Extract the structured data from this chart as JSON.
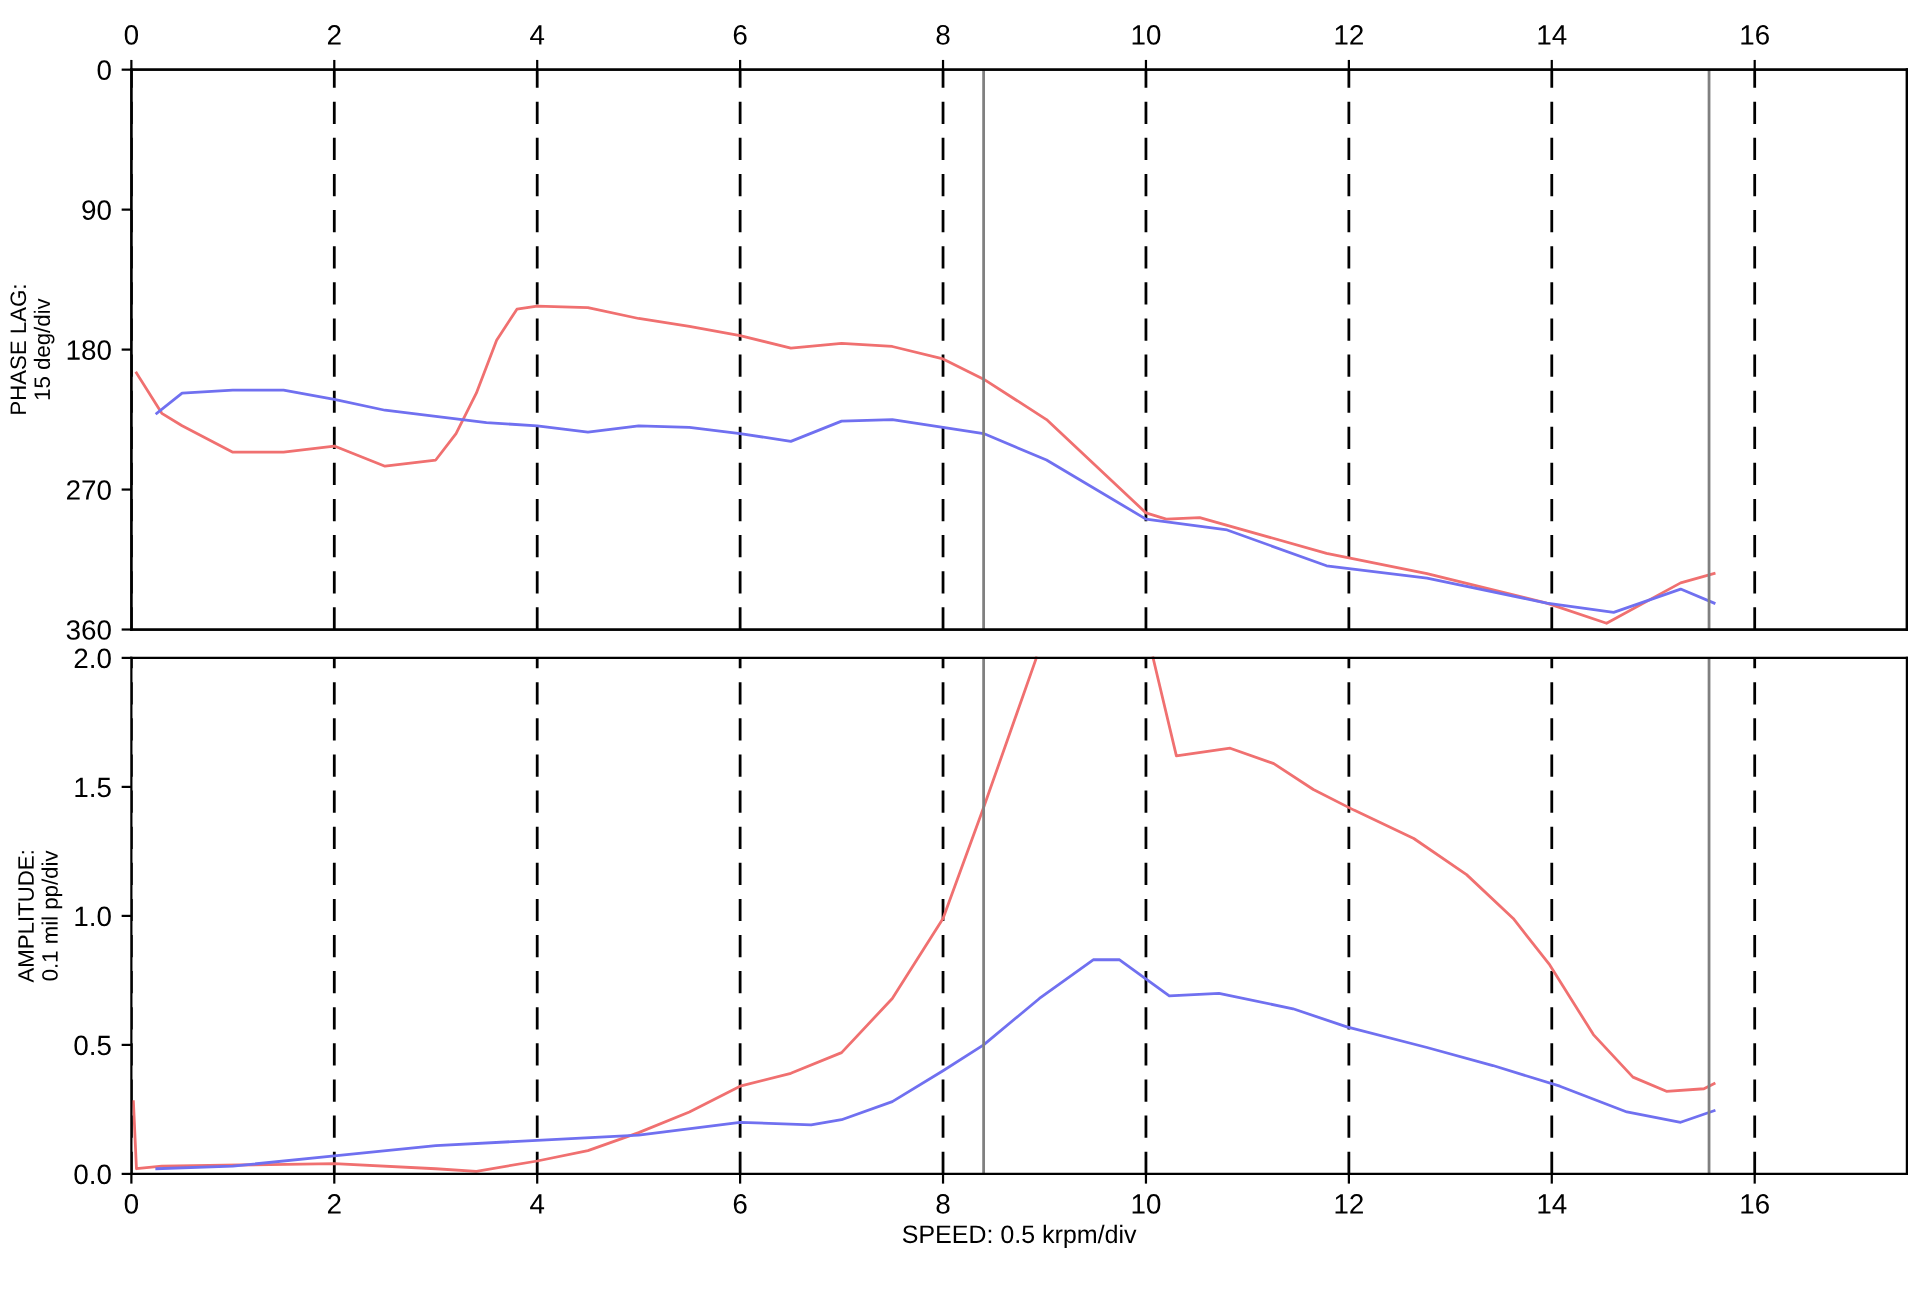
{
  "chart_data": [
    {
      "type": "line",
      "ylabel": "PHASE LAG:\n15 deg/div",
      "xlim": [
        0,
        17.5
      ],
      "x2lim": [
        0,
        17.5
      ],
      "x2ticks": [
        0,
        2,
        4,
        6,
        8,
        10,
        12,
        14,
        16
      ],
      "tick_labels": "y",
      "ylim": [
        360,
        0
      ],
      "yticks": [
        0,
        90,
        180,
        270,
        360
      ],
      "grid": "x",
      "line_style": "solid",
      "ref_lines": [
        {
          "axis": "x",
          "value": 8.4,
          "color": "#808080"
        },
        {
          "axis": "x",
          "value": 15.55,
          "color": "#808080"
        }
      ],
      "series": [
        {
          "color": "#f07070",
          "x": [
            0.05,
            0.3,
            0.5,
            1,
            1.5,
            2,
            2.5,
            3,
            3.2,
            3.4,
            3.6,
            3.8,
            4,
            4.5,
            5,
            5.5,
            6,
            6.5,
            7,
            7.5,
            8,
            8.4,
            9.02,
            10.0,
            10.2,
            10.53,
            11.78,
            12.77,
            13.95,
            14.54,
            15.27,
            15.6
          ],
          "values": [
            195,
            221,
            229,
            246,
            246,
            242,
            255,
            251,
            234,
            208,
            174,
            154,
            152,
            153,
            160,
            165,
            171,
            179,
            176,
            178,
            186,
            199,
            225,
            285,
            289,
            288,
            311,
            324,
            343,
            356,
            330,
            324
          ]
        },
        {
          "color": "#7070f0",
          "x": [
            0.25,
            0.5,
            1,
            1.5,
            2,
            2.5,
            3,
            3.5,
            4,
            4.5,
            5,
            5.5,
            6,
            6.5,
            7,
            7.5,
            8,
            8.4,
            9.02,
            10.0,
            10.8,
            11.78,
            12.77,
            13.95,
            14.61,
            15.27,
            15.6
          ],
          "values": [
            221,
            208,
            206,
            206,
            212,
            219,
            223,
            227,
            229,
            233,
            229,
            230,
            234,
            239,
            226,
            225,
            230,
            234,
            251,
            289,
            296,
            319,
            327,
            343,
            349,
            334,
            343
          ]
        }
      ]
    },
    {
      "type": "line",
      "xlabel": "SPEED: 0.5 krpm/div",
      "ylabel": "AMPLITUDE:\n0.1 mil pp/div",
      "xlim": [
        0,
        17.5
      ],
      "xticks": [
        0,
        2,
        4,
        6,
        8,
        10,
        12,
        14,
        16
      ],
      "ylim": [
        0,
        2.0
      ],
      "yticks": [
        {
          "value": 0,
          "label": "0.0"
        },
        0.5,
        {
          "value": 1,
          "label": "1.0"
        },
        1.5,
        {
          "value": 2,
          "label": "2.0"
        }
      ],
      "grid": "x",
      "line_style": "solid",
      "ref_lines": [
        {
          "axis": "x",
          "value": 8.4,
          "color": "#808080"
        },
        {
          "axis": "x",
          "value": 15.55,
          "color": "#808080"
        }
      ],
      "series": [
        {
          "color": "#f07070",
          "x": [
            0.02,
            0.05,
            0.3,
            2,
            3,
            3.4,
            4,
            4.5,
            5,
            5.5,
            6,
            6.5,
            7,
            7.5,
            8,
            8.4,
            8.92,
            8.95,
            9.3,
            9.5,
            9.7,
            9.85,
            10.07,
            10.3,
            10.83,
            11.26,
            11.65,
            12.05,
            12.64,
            13.16,
            13.62,
            13.98,
            14.41,
            14.8,
            15.13,
            15.5,
            15.6
          ],
          "values": [
            0.28,
            0.02,
            0.03,
            0.04,
            0.02,
            0.01,
            0.05,
            0.09,
            0.16,
            0.24,
            0.34,
            0.39,
            0.47,
            0.68,
            0.99,
            1.42,
            2.0,
            null,
            null,
            null,
            null,
            null,
            2.0,
            1.62,
            1.65,
            1.59,
            1.49,
            1.41,
            1.3,
            1.16,
            0.99,
            0.81,
            0.54,
            0.375,
            0.32,
            0.33,
            0.35
          ]
        },
        {
          "color": "#7070f0",
          "x": [
            0.25,
            1,
            2,
            3,
            4,
            5,
            6,
            6.7,
            7,
            7.5,
            8,
            8.4,
            8.95,
            9.48,
            9.74,
            10.23,
            10.72,
            11.45,
            11.98,
            12.77,
            13.42,
            14.08,
            14.74,
            15.27,
            15.6
          ],
          "values": [
            0.02,
            0.03,
            0.07,
            0.11,
            0.13,
            0.15,
            0.2,
            0.19,
            0.21,
            0.28,
            0.4,
            0.5,
            0.68,
            0.83,
            0.83,
            0.69,
            0.7,
            0.64,
            0.57,
            0.49,
            0.42,
            0.34,
            0.24,
            0.2,
            0.245
          ]
        }
      ]
    }
  ]
}
